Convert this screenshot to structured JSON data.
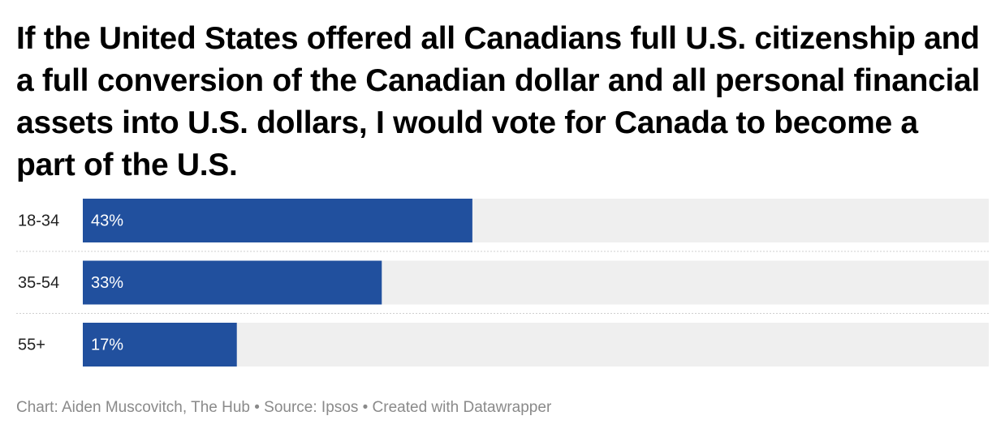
{
  "chart_data": {
    "type": "bar",
    "orientation": "horizontal",
    "title": "If the United States offered all Canadians full U.S. citizenship and a full conversion of the Canadian dollar and all personal financial assets into U.S. dollars, I would vote for Canada to become a part of the U.S.",
    "categories": [
      "18-34",
      "35-54",
      "55+"
    ],
    "values": [
      43,
      33,
      17
    ],
    "value_labels": [
      "43%",
      "33%",
      "17%"
    ],
    "color": "#21509e",
    "xlim": [
      0,
      100
    ],
    "footer": "Chart: Aiden Muscovitch, The Hub • Source: Ipsos • Created with Datawrapper"
  }
}
